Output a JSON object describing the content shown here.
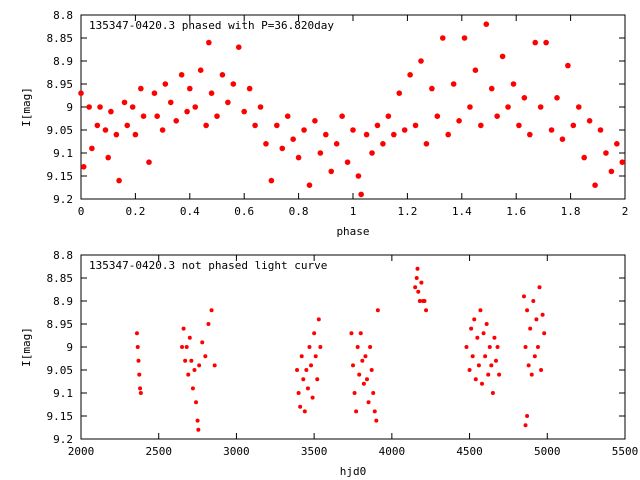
{
  "chart_data": [
    {
      "type": "scatter",
      "title": "135347-0420.3 phased with P=36.820day",
      "xlabel": "phase",
      "ylabel": "I[mag]",
      "xlim": [
        0,
        2
      ],
      "ylim": [
        9.2,
        8.8
      ],
      "y_inverted": true,
      "grid": false,
      "marker_color": "#ff0000",
      "x_ticks": [
        "0",
        "0.2",
        "0.4",
        "0.6",
        "0.8",
        "1",
        "1.2",
        "1.4",
        "1.6",
        "1.8",
        "2"
      ],
      "y_ticks": [
        "8.8",
        "8.85",
        "8.9",
        "8.95",
        "9",
        "9.05",
        "9.1",
        "9.15",
        "9.2"
      ],
      "points": [
        [
          0.0,
          8.97
        ],
        [
          0.01,
          9.13
        ],
        [
          0.03,
          9.0
        ],
        [
          0.04,
          9.09
        ],
        [
          0.06,
          9.04
        ],
        [
          0.07,
          9.0
        ],
        [
          0.09,
          9.05
        ],
        [
          0.1,
          9.11
        ],
        [
          0.11,
          9.01
        ],
        [
          0.13,
          9.06
        ],
        [
          0.14,
          9.16
        ],
        [
          0.16,
          8.99
        ],
        [
          0.17,
          9.04
        ],
        [
          0.19,
          9.0
        ],
        [
          0.2,
          9.06
        ],
        [
          0.22,
          8.96
        ],
        [
          0.23,
          9.02
        ],
        [
          0.25,
          9.12
        ],
        [
          0.27,
          8.97
        ],
        [
          0.28,
          9.02
        ],
        [
          0.3,
          9.05
        ],
        [
          0.31,
          8.95
        ],
        [
          0.33,
          8.99
        ],
        [
          0.35,
          9.03
        ],
        [
          0.37,
          8.93
        ],
        [
          0.39,
          9.01
        ],
        [
          0.4,
          8.96
        ],
        [
          0.42,
          9.0
        ],
        [
          0.44,
          8.92
        ],
        [
          0.46,
          9.04
        ],
        [
          0.47,
          8.86
        ],
        [
          0.48,
          8.97
        ],
        [
          0.5,
          9.02
        ],
        [
          0.52,
          8.93
        ],
        [
          0.54,
          8.99
        ],
        [
          0.56,
          8.95
        ],
        [
          0.58,
          8.87
        ],
        [
          0.6,
          9.01
        ],
        [
          0.62,
          8.96
        ],
        [
          0.64,
          9.04
        ],
        [
          0.66,
          9.0
        ],
        [
          0.68,
          9.08
        ],
        [
          0.7,
          9.16
        ],
        [
          0.72,
          9.04
        ],
        [
          0.74,
          9.09
        ],
        [
          0.76,
          9.02
        ],
        [
          0.78,
          9.07
        ],
        [
          0.8,
          9.11
        ],
        [
          0.82,
          9.05
        ],
        [
          0.84,
          9.17
        ],
        [
          0.86,
          9.03
        ],
        [
          0.88,
          9.1
        ],
        [
          0.9,
          9.06
        ],
        [
          0.92,
          9.14
        ],
        [
          0.94,
          9.08
        ],
        [
          0.96,
          9.02
        ],
        [
          0.98,
          9.12
        ],
        [
          1.0,
          9.05
        ],
        [
          1.02,
          9.15
        ],
        [
          1.03,
          9.19
        ],
        [
          1.05,
          9.06
        ],
        [
          1.07,
          9.1
        ],
        [
          1.09,
          9.04
        ],
        [
          1.11,
          9.08
        ],
        [
          1.13,
          9.02
        ],
        [
          1.15,
          9.06
        ],
        [
          1.17,
          8.97
        ],
        [
          1.19,
          9.05
        ],
        [
          1.21,
          8.93
        ],
        [
          1.23,
          9.04
        ],
        [
          1.25,
          8.9
        ],
        [
          1.27,
          9.08
        ],
        [
          1.29,
          8.96
        ],
        [
          1.31,
          9.02
        ],
        [
          1.33,
          8.85
        ],
        [
          1.35,
          9.06
        ],
        [
          1.37,
          8.95
        ],
        [
          1.39,
          9.03
        ],
        [
          1.41,
          8.85
        ],
        [
          1.43,
          9.0
        ],
        [
          1.45,
          8.92
        ],
        [
          1.47,
          9.04
        ],
        [
          1.49,
          8.82
        ],
        [
          1.51,
          8.96
        ],
        [
          1.53,
          9.02
        ],
        [
          1.55,
          8.89
        ],
        [
          1.57,
          9.0
        ],
        [
          1.59,
          8.95
        ],
        [
          1.61,
          9.04
        ],
        [
          1.63,
          8.98
        ],
        [
          1.65,
          9.06
        ],
        [
          1.67,
          8.86
        ],
        [
          1.69,
          9.0
        ],
        [
          1.71,
          8.86
        ],
        [
          1.73,
          9.05
        ],
        [
          1.75,
          8.98
        ],
        [
          1.77,
          9.07
        ],
        [
          1.79,
          8.91
        ],
        [
          1.81,
          9.04
        ],
        [
          1.83,
          9.0
        ],
        [
          1.85,
          9.11
        ],
        [
          1.87,
          9.03
        ],
        [
          1.89,
          9.17
        ],
        [
          1.91,
          9.05
        ],
        [
          1.93,
          9.1
        ],
        [
          1.95,
          9.14
        ],
        [
          1.97,
          9.08
        ],
        [
          1.99,
          9.12
        ]
      ]
    },
    {
      "type": "scatter",
      "title": "135347-0420.3 not phased light curve",
      "xlabel": "hjd0",
      "ylabel": "I[mag]",
      "xlim": [
        2000,
        5500
      ],
      "ylim": [
        9.2,
        8.8
      ],
      "y_inverted": true,
      "grid": false,
      "marker_color": "#ff0000",
      "x_ticks": [
        "2000",
        "2500",
        "3000",
        "3500",
        "4000",
        "4500",
        "5000",
        "5500"
      ],
      "y_ticks": [
        "8.8",
        "8.85",
        "8.9",
        "8.95",
        "9",
        "9.05",
        "9.1",
        "9.15",
        "9.2"
      ],
      "points": [
        [
          2360,
          8.97
        ],
        [
          2365,
          9.0
        ],
        [
          2370,
          9.03
        ],
        [
          2375,
          9.06
        ],
        [
          2380,
          9.09
        ],
        [
          2385,
          9.1
        ],
        [
          2650,
          9.0
        ],
        [
          2660,
          8.96
        ],
        [
          2670,
          9.03
        ],
        [
          2680,
          9.0
        ],
        [
          2690,
          9.06
        ],
        [
          2700,
          8.98
        ],
        [
          2710,
          9.03
        ],
        [
          2720,
          9.09
        ],
        [
          2730,
          9.05
        ],
        [
          2740,
          9.12
        ],
        [
          2750,
          9.16
        ],
        [
          2755,
          9.18
        ],
        [
          2760,
          9.04
        ],
        [
          2780,
          8.99
        ],
        [
          2800,
          9.02
        ],
        [
          2820,
          8.95
        ],
        [
          2840,
          8.92
        ],
        [
          2860,
          9.04
        ],
        [
          3390,
          9.05
        ],
        [
          3400,
          9.1
        ],
        [
          3410,
          9.13
        ],
        [
          3420,
          9.02
        ],
        [
          3430,
          9.07
        ],
        [
          3440,
          9.14
        ],
        [
          3450,
          9.05
        ],
        [
          3460,
          9.09
        ],
        [
          3470,
          9.0
        ],
        [
          3480,
          9.04
        ],
        [
          3490,
          9.11
        ],
        [
          3500,
          8.97
        ],
        [
          3510,
          9.02
        ],
        [
          3520,
          9.07
        ],
        [
          3530,
          8.94
        ],
        [
          3540,
          9.0
        ],
        [
          3740,
          8.97
        ],
        [
          3750,
          9.04
        ],
        [
          3760,
          9.1
        ],
        [
          3770,
          9.14
        ],
        [
          3780,
          9.0
        ],
        [
          3790,
          9.06
        ],
        [
          3800,
          8.97
        ],
        [
          3810,
          9.03
        ],
        [
          3820,
          9.08
        ],
        [
          3830,
          9.02
        ],
        [
          3840,
          9.07
        ],
        [
          3850,
          9.12
        ],
        [
          3860,
          9.0
        ],
        [
          3870,
          9.05
        ],
        [
          3880,
          9.1
        ],
        [
          3890,
          9.14
        ],
        [
          3900,
          9.16
        ],
        [
          3910,
          8.92
        ],
        [
          4150,
          8.87
        ],
        [
          4160,
          8.85
        ],
        [
          4165,
          8.83
        ],
        [
          4170,
          8.88
        ],
        [
          4180,
          8.9
        ],
        [
          4190,
          8.86
        ],
        [
          4200,
          8.9
        ],
        [
          4210,
          8.9
        ],
        [
          4220,
          8.92
        ],
        [
          4480,
          9.0
        ],
        [
          4500,
          9.05
        ],
        [
          4510,
          8.96
        ],
        [
          4520,
          9.02
        ],
        [
          4530,
          8.94
        ],
        [
          4540,
          9.07
        ],
        [
          4550,
          8.98
        ],
        [
          4560,
          9.04
        ],
        [
          4570,
          8.92
        ],
        [
          4580,
          9.08
        ],
        [
          4590,
          8.97
        ],
        [
          4600,
          9.02
        ],
        [
          4610,
          8.95
        ],
        [
          4620,
          9.06
        ],
        [
          4630,
          9.0
        ],
        [
          4640,
          9.04
        ],
        [
          4650,
          9.1
        ],
        [
          4660,
          8.98
        ],
        [
          4670,
          9.03
        ],
        [
          4680,
          9.0
        ],
        [
          4690,
          9.06
        ],
        [
          4850,
          8.89
        ],
        [
          4860,
          9.0
        ],
        [
          4870,
          8.92
        ],
        [
          4880,
          9.04
        ],
        [
          4890,
          8.96
        ],
        [
          4900,
          9.06
        ],
        [
          4910,
          8.9
        ],
        [
          4920,
          9.02
        ],
        [
          4930,
          8.94
        ],
        [
          4940,
          9.0
        ],
        [
          4950,
          8.87
        ],
        [
          4960,
          9.05
        ],
        [
          4970,
          8.93
        ],
        [
          4980,
          8.97
        ],
        [
          4860,
          9.17
        ],
        [
          4870,
          9.15
        ]
      ]
    }
  ]
}
